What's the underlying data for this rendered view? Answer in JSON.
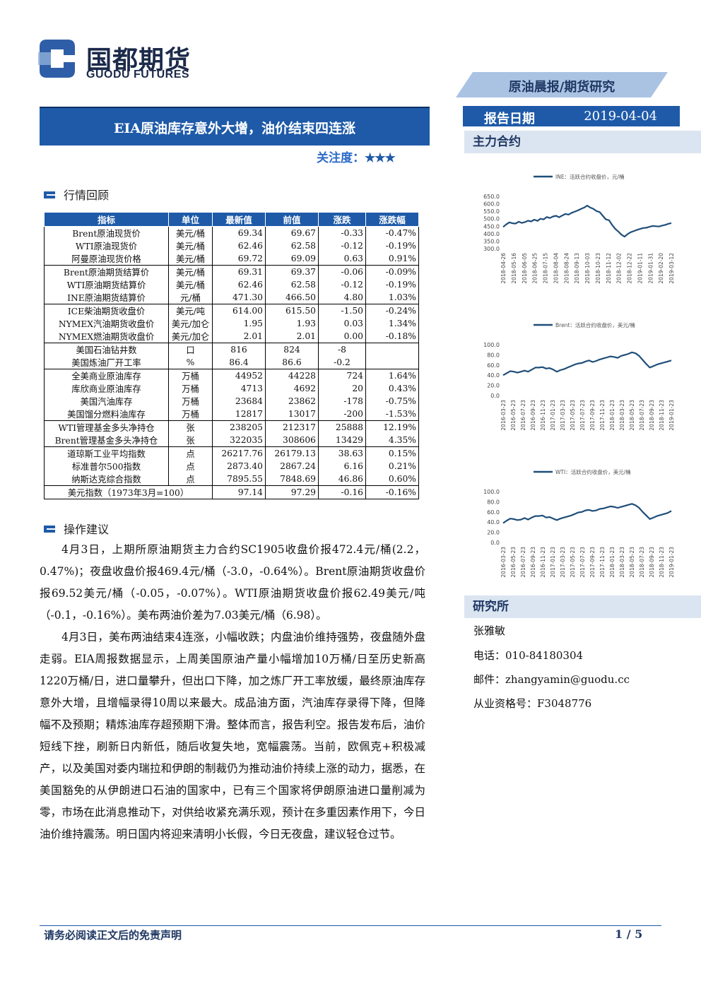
{
  "logo": {
    "cn": "国都期货",
    "en": "GUODU FUTURES"
  },
  "report_type": "原油晨报/期货研究",
  "report_date": {
    "label": "报告日期",
    "value": "2019-04-04"
  },
  "main_contract_label": "主力合约",
  "title": "EIA原油库存意外大增，油价结束四连涨",
  "attention": {
    "label": "关注度：",
    "stars": "★★★"
  },
  "sections": {
    "market_review": "行情回顾",
    "suggestion": "操作建议",
    "research": "研究所"
  },
  "table": {
    "headers": [
      "指标",
      "单位",
      "最新值",
      "前值",
      "涨跌",
      "涨跌幅"
    ],
    "rows": [
      {
        "name": "Brent原油现货价",
        "unit": "美元/桶",
        "latest": "69.34",
        "prev": "69.67",
        "chg": "-0.33",
        "pct": "-0.47%",
        "gs": true
      },
      {
        "name": "WTI原油现货价",
        "unit": "美元/桶",
        "latest": "62.46",
        "prev": "62.58",
        "chg": "-0.12",
        "pct": "-0.19%"
      },
      {
        "name": "阿曼原油现货价格",
        "unit": "美元/桶",
        "latest": "69.72",
        "prev": "69.09",
        "chg": "0.63",
        "pct": "0.91%"
      },
      {
        "name": "Brent原油期货结算价",
        "unit": "美元/桶",
        "latest": "69.31",
        "prev": "69.37",
        "chg": "-0.06",
        "pct": "-0.09%",
        "gs": true
      },
      {
        "name": "WTI原油期货结算价",
        "unit": "美元/桶",
        "latest": "62.46",
        "prev": "62.58",
        "chg": "-0.12",
        "pct": "-0.19%"
      },
      {
        "name": "INE原油期货结算价",
        "unit": "元/桶",
        "latest": "471.30",
        "prev": "466.50",
        "chg": "4.80",
        "pct": "1.03%"
      },
      {
        "name": "ICE柴油期货收盘价",
        "unit": "美元/吨",
        "latest": "614.00",
        "prev": "615.50",
        "chg": "-1.50",
        "pct": "-0.24%",
        "gs": true
      },
      {
        "name": "NYMEX汽油期货收盘价",
        "unit": "美元/加仑",
        "latest": "1.95",
        "prev": "1.93",
        "chg": "0.03",
        "pct": "1.34%"
      },
      {
        "name": "NYMEX燃油期货收盘价",
        "unit": "美元/加仑",
        "latest": "2.01",
        "prev": "2.01",
        "chg": "0.00",
        "pct": "-0.18%"
      },
      {
        "name": "美国石油钻井数",
        "unit": "口",
        "latest": "816",
        "prev": "824",
        "chg": "-8",
        "pct": "",
        "gs": true,
        "center": true
      },
      {
        "name": "美国炼油厂开工率",
        "unit": "%",
        "latest": "86.4",
        "prev": "86.6",
        "chg": "-0.2",
        "pct": "",
        "center": true
      },
      {
        "name": "全美商业原油库存",
        "unit": "万桶",
        "latest": "44952",
        "prev": "44228",
        "chg": "724",
        "pct": "1.64%",
        "gs": true
      },
      {
        "name": "库欣商业原油库存",
        "unit": "万桶",
        "latest": "4713",
        "prev": "4692",
        "chg": "20",
        "pct": "0.43%"
      },
      {
        "name": "美国汽油库存",
        "unit": "万桶",
        "latest": "23684",
        "prev": "23862",
        "chg": "-178",
        "pct": "-0.75%"
      },
      {
        "name": "美国馏分燃料油库存",
        "unit": "万桶",
        "latest": "12817",
        "prev": "13017",
        "chg": "-200",
        "pct": "-1.53%"
      },
      {
        "name": "WTI管理基金多头净持仓",
        "unit": "张",
        "latest": "238205",
        "prev": "212317",
        "chg": "25888",
        "pct": "12.19%",
        "gs": true
      },
      {
        "name": "Brent管理基金多头净持仓",
        "unit": "张",
        "latest": "322035",
        "prev": "308606",
        "chg": "13429",
        "pct": "4.35%"
      },
      {
        "name": "道琼斯工业平均指数",
        "unit": "点",
        "latest": "26217.76",
        "prev": "26179.13",
        "chg": "38.63",
        "pct": "0.15%",
        "gs": true
      },
      {
        "name": "标准普尔500指数",
        "unit": "点",
        "latest": "2873.40",
        "prev": "2867.24",
        "chg": "6.16",
        "pct": "0.21%"
      },
      {
        "name": "纳斯达克综合指数",
        "unit": "点",
        "latest": "7895.55",
        "prev": "7848.69",
        "chg": "46.86",
        "pct": "0.60%"
      },
      {
        "name": "美元指数（1973年3月=100）",
        "unit": "",
        "latest": "97.14",
        "prev": "97.29",
        "chg": "-0.16",
        "pct": "-0.16%",
        "gs": true,
        "span": true
      }
    ]
  },
  "paragraphs": [
    "4月3日，上期所原油期货主力合约SC1905收盘价报472.4元/桶(2.2，0.47%)；夜盘收盘价报469.4元/桶（-3.0，-0.64%）。Brent原油期货收盘价报69.52美元/桶（-0.05，-0.07%）。WTI原油期货收盘价报62.49美元/吨（-0.1，-0.16%）。美布两油价差为7.03美元/桶（6.98）。",
    "4月3日，美布两油结束4连涨，小幅收跌；内盘油价维持强势，夜盘随外盘走弱。EIA周报数据显示，上周美国原油产量小幅增加10万桶/日至历史新高1220万桶/日，进口量攀升，但出口下降，加之炼厂开工率放缓，最终原油库存意外大增，且增幅录得10周以来最大。成品油方面，汽油库存录得下降，但降幅不及预期；精炼油库存超预期下滑。整体而言，报告利空。报告发布后，油价短线下挫，刷新日内新低，随后收复失地，宽幅震荡。当前，欧佩克+积极减产，以及美国对委内瑞拉和伊朗的制裁仍为推动油价持续上涨的动力，据悉，在美国豁免的从伊朗进口石油的国家中，已有三个国家将伊朗原油进口量削减为零，市场在此消息推动下，对供给收紧充满乐观，预计在多重因素作用下，今日油价维持震荡。明日国内将迎来清明小长假，今日无夜盘，建议轻仓过节。"
  ],
  "contact": {
    "name": "张雅敏",
    "tel": "电话：010-84180304",
    "mail": "邮件：zhangyamin@guodu.cc",
    "license": "从业资格号：F3048776"
  },
  "footer": {
    "disclaimer": "请务必阅读正文后的免责声明",
    "page": "1 / 5"
  },
  "colors": {
    "brand": "#1e5aa8",
    "series": "#1f4e79"
  },
  "chart_data": [
    {
      "type": "line",
      "legend": "INE：活跃合约收盘价，元/桶",
      "ylim": [
        300,
        650
      ],
      "yticks": [
        "650.0",
        "600.0",
        "550.0",
        "500.0",
        "450.0",
        "400.0",
        "350.0",
        "300.0"
      ],
      "xticks": [
        "2018-04-26",
        "2018-05-16",
        "2018-06-05",
        "2018-06-25",
        "2018-07-15",
        "2018-08-04",
        "2018-08-24",
        "2018-09-13",
        "2018-10-03",
        "2018-10-23",
        "2018-11-12",
        "2018-12-02",
        "2018-12-22",
        "2019-01-11",
        "2019-01-31",
        "2019-02-20",
        "2019-03-12"
      ],
      "values": [
        445,
        462,
        476,
        470,
        468,
        480,
        472,
        478,
        487,
        482,
        494,
        486,
        500,
        496,
        512,
        505,
        515,
        520,
        510,
        522,
        532,
        528,
        540,
        548,
        556,
        566,
        575,
        588,
        575,
        566,
        551,
        545,
        520,
        496,
        490,
        458,
        432,
        414,
        393,
        380,
        398,
        410,
        418,
        426,
        432,
        438,
        440,
        446,
        452,
        450,
        448,
        454,
        459,
        466,
        471
      ]
    },
    {
      "type": "line",
      "legend": "Brent：活跃合约收盘价，美元/桶",
      "ylim": [
        0,
        100
      ],
      "yticks": [
        "100.0",
        "80.0",
        "60.0",
        "40.0",
        "20.0",
        "0.0"
      ],
      "xticks": [
        "2016-03-23",
        "2016-05-23",
        "2016-07-23",
        "2016-09-23",
        "2016-11-23",
        "2017-01-23",
        "2017-03-23",
        "2017-05-23",
        "2017-07-23",
        "2017-09-23",
        "2017-11-23",
        "2018-01-23",
        "2018-03-23",
        "2018-05-23",
        "2018-07-23",
        "2018-09-23",
        "2018-11-23",
        "2019-01-23"
      ],
      "values": [
        40,
        44,
        48,
        47,
        45,
        47,
        49,
        47,
        51,
        55,
        55,
        56,
        53,
        54,
        51,
        47,
        50,
        52,
        55,
        58,
        61,
        63,
        64,
        67,
        69,
        66,
        68,
        71,
        73,
        75,
        77,
        76,
        74,
        78,
        80,
        82,
        85,
        83,
        78,
        70,
        62,
        55,
        58,
        61,
        63,
        65,
        67,
        69
      ]
    },
    {
      "type": "line",
      "legend": "WTI：活跃合约收盘价，美元/桶",
      "ylim": [
        0,
        100
      ],
      "yticks": [
        "100.0",
        "80.0",
        "60.0",
        "40.0",
        "20.0",
        "0.0"
      ],
      "xticks": [
        "2016-03-23",
        "2016-05-23",
        "2016-07-23",
        "2016-09-23",
        "2016-11-23",
        "2017-01-23",
        "2017-03-23",
        "2017-05-23",
        "2017-07-23",
        "2017-09-23",
        "2017-11-23",
        "2018-01-23",
        "2018-03-23",
        "2018-05-23",
        "2018-07-23",
        "2018-09-23",
        "2018-11-23",
        "2019-01-23"
      ],
      "values": [
        38,
        43,
        47,
        46,
        44,
        45,
        48,
        45,
        49,
        52,
        52,
        53,
        49,
        50,
        47,
        44,
        47,
        49,
        51,
        53,
        56,
        59,
        60,
        63,
        64,
        62,
        63,
        66,
        67,
        69,
        71,
        70,
        68,
        70,
        72,
        74,
        76,
        73,
        68,
        60,
        53,
        46,
        49,
        52,
        54,
        56,
        58,
        62
      ]
    }
  ]
}
